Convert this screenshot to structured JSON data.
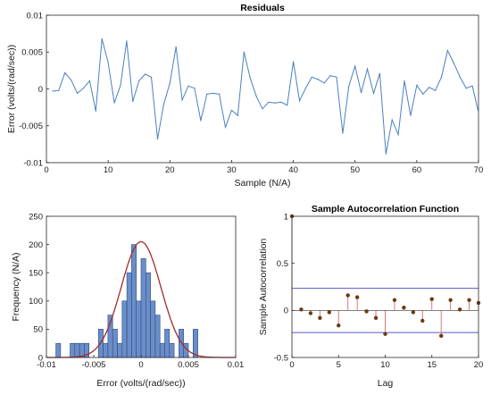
{
  "chart_data": [
    {
      "type": "line",
      "title": "Residuals",
      "xlabel": "Sample (N/A)",
      "ylabel": "Error (volts/(rad/sec))",
      "xlim": [
        0,
        70
      ],
      "ylim": [
        -0.01,
        0.01
      ],
      "xticks": [
        "0",
        "10",
        "20",
        "30",
        "40",
        "50",
        "60",
        "70"
      ],
      "yticks": [
        "-0.01",
        "-0.005",
        "0",
        "0.005",
        "0.01"
      ],
      "series": [
        {
          "color": "#4a7fbf",
          "x": [
            1,
            2,
            3,
            4,
            5,
            6,
            7,
            8,
            9,
            10,
            11,
            12,
            13,
            14,
            15,
            16,
            17,
            18,
            19,
            20,
            21,
            22,
            23,
            24,
            25,
            26,
            27,
            28,
            29,
            30,
            31,
            32,
            33,
            34,
            35,
            36,
            37,
            38,
            39,
            40,
            41,
            42,
            43,
            44,
            45,
            46,
            47,
            48,
            49,
            50,
            51,
            52,
            53,
            54,
            55,
            56,
            57,
            58,
            59,
            60,
            61,
            62,
            63,
            64,
            65,
            66,
            67,
            68,
            69,
            70
          ],
          "values": [
            -0.0003,
            -0.0002,
            0.0022,
            0.0012,
            -0.0006,
            0.0001,
            0.0011,
            -0.003,
            0.0068,
            0.0036,
            -0.0019,
            0.0005,
            0.0065,
            -0.0017,
            0.0011,
            0.002,
            0.0016,
            -0.0068,
            -0.0021,
            0.0008,
            0.0057,
            -0.0015,
            0.0004,
            0.0001,
            -0.0043,
            -0.0007,
            -0.0006,
            -0.0007,
            -0.0052,
            -0.0029,
            -0.0036,
            0.005,
            0.0015,
            -0.001,
            -0.0027,
            -0.0018,
            -0.0019,
            -0.0018,
            -0.0022,
            0.0037,
            -0.0016,
            0.0001,
            0.0016,
            0.0013,
            0.0008,
            0.0018,
            0.0016,
            -0.006,
            0.0004,
            0.0031,
            -0.0005,
            0.0027,
            -0.0006,
            0.0021,
            -0.0088,
            -0.0042,
            -0.0062,
            0.0011,
            -0.0036,
            0.0005,
            -0.0007,
            0.0002,
            -0.0002,
            0.0016,
            0.0052,
            0.0035,
            0.0016,
            0.0001,
            0.0004,
            -0.0032
          ]
        }
      ]
    },
    {
      "type": "bar",
      "subtype": "histogram with fitted normal curve",
      "title": "",
      "xlabel": "Error (volts/(rad/sec))",
      "ylabel": "Frequency (N/A)",
      "xlim": [
        -0.01,
        0.01
      ],
      "ylim": [
        0,
        250
      ],
      "xticks": [
        "-0.01",
        "-0.005",
        "0",
        "0.005",
        "0.01"
      ],
      "yticks": [
        "0",
        "50",
        "100",
        "150",
        "200",
        "250"
      ],
      "bin_width": 0.0005,
      "bin_start": -0.009,
      "values": [
        25,
        0,
        0,
        25,
        25,
        25,
        25,
        0,
        0,
        50,
        25,
        75,
        50,
        25,
        100,
        150,
        200,
        100,
        175,
        150,
        100,
        75,
        25,
        50,
        25,
        0,
        50,
        25,
        0,
        50,
        0,
        0,
        0
      ],
      "fit": {
        "mean": 0.0,
        "std": 0.0021,
        "peak": 205
      },
      "colors": {
        "bars": "#6b8ec8",
        "edges": "#2a4a86",
        "fit": "#a32a2a"
      }
    },
    {
      "type": "bar",
      "subtype": "stem",
      "title": "Sample Autocorrelation Function",
      "xlabel": "Lag",
      "ylabel": "Sample Autocorrelation",
      "xlim": [
        0,
        20
      ],
      "ylim": [
        -0.5,
        1
      ],
      "xticks": [
        "0",
        "5",
        "10",
        "15",
        "20"
      ],
      "yticks": [
        "-0.5",
        "0",
        "0.5",
        "1"
      ],
      "lags": [
        0,
        1,
        2,
        3,
        4,
        5,
        6,
        7,
        8,
        9,
        10,
        11,
        12,
        13,
        14,
        15,
        16,
        17,
        18,
        19,
        20
      ],
      "values": [
        1,
        0.01,
        -0.03,
        -0.08,
        -0.02,
        -0.16,
        0.16,
        0.14,
        -0.01,
        -0.08,
        -0.25,
        0.11,
        0.03,
        -0.02,
        -0.11,
        0.12,
        -0.27,
        0.11,
        0.01,
        0.11,
        0.08
      ],
      "confidence_bounds": [
        0.235,
        -0.235
      ],
      "colors": {
        "stem": "#d46a6a",
        "marker": "#6b3a10",
        "bounds": "#5858c8"
      }
    }
  ]
}
